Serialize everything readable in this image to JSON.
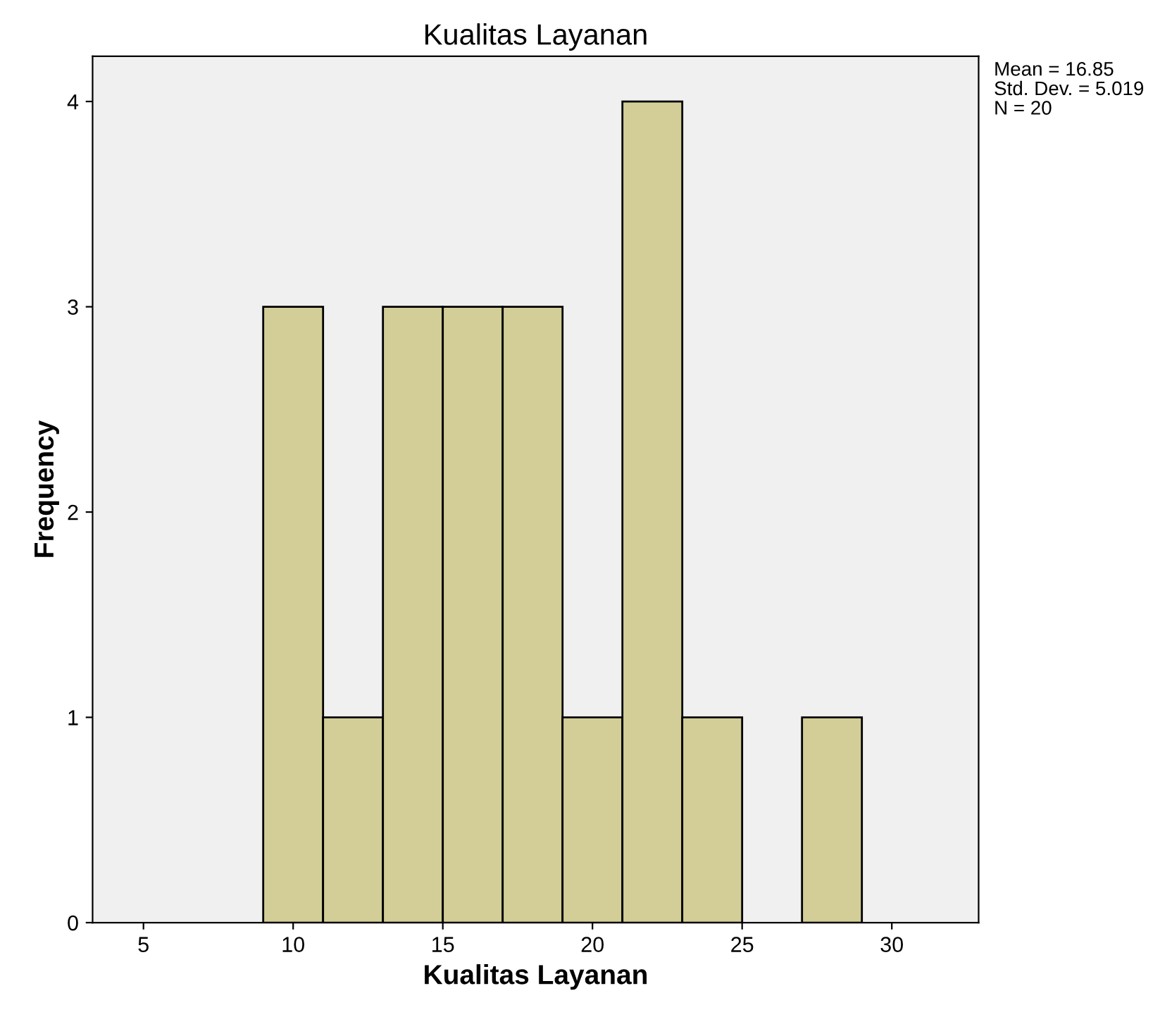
{
  "chart_data": {
    "type": "histogram",
    "title": "Kualitas Layanan",
    "xlabel": "Kualitas Layanan",
    "ylabel": "Frequency",
    "bins": [
      9,
      11,
      13,
      15,
      17,
      19,
      21,
      23,
      25,
      27,
      29
    ],
    "values": [
      3,
      1,
      3,
      3,
      3,
      1,
      4,
      1,
      0,
      1
    ],
    "color": "#d3ce97",
    "xlim": [
      3.3,
      32.9
    ],
    "xticks": [
      5,
      10,
      15,
      20,
      25,
      30
    ],
    "ylim": [
      0,
      4.22
    ],
    "yticks": [
      0,
      1,
      2,
      3,
      4
    ],
    "grid": false,
    "legend": false,
    "annotations": [
      "Mean = 16.85",
      "Std. Dev. = 5.019",
      "N = 20"
    ]
  }
}
